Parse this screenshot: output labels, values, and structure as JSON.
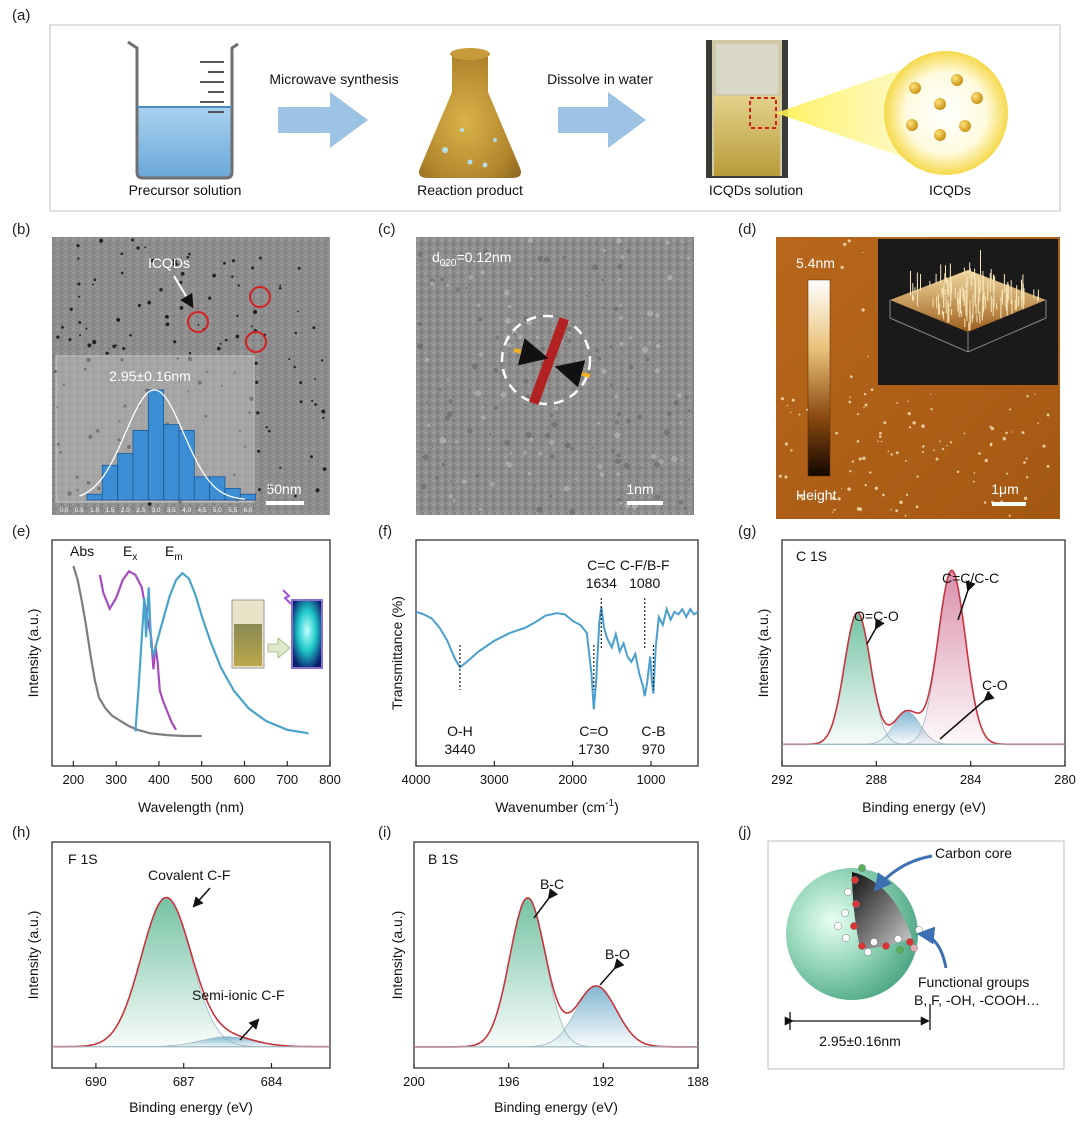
{
  "panel_labels": [
    "(a)",
    "(b)",
    "(c)",
    "(d)",
    "(e)",
    "(f)",
    "(g)",
    "(h)",
    "(i)",
    "(j)"
  ],
  "panel_a": {
    "step1": "Microwave synthesis",
    "step2": "Dissolve in water",
    "captions": [
      "Precursor solution",
      "Reaction product",
      "ICQDs solution",
      "ICQDs"
    ]
  },
  "panel_b": {
    "label": "ICQDs",
    "inset_title": "2.95±0.16nm",
    "scale_bar": "50nm",
    "x_ticks": [
      "0.0",
      "0.5",
      "1.0",
      "1.5",
      "2.0",
      "2.5",
      "3.0",
      "3.5",
      "4.0",
      "4.5",
      "5.0",
      "5.5",
      "6.0"
    ],
    "hist_values": [
      1,
      6,
      8,
      12,
      19,
      13,
      12,
      4,
      4,
      2,
      1
    ],
    "hist_centers": [
      1.0,
      1.5,
      2.0,
      2.5,
      3.0,
      3.5,
      4.0,
      4.5,
      5.0,
      5.5,
      6.0
    ]
  },
  "panel_c": {
    "d_main": "d",
    "d_sub": "020",
    "d_rest": "=0.12nm",
    "scale_bar": "1nm"
  },
  "panel_d": {
    "top_label": "5.4nm",
    "bottom_label": "Height",
    "scale_bar": "1μm"
  },
  "chart_data": [
    {
      "type": "line",
      "panel": "e",
      "xlabel": "Wavelength (nm)",
      "ylabel": "Intensity (a.u.)",
      "xlim": [
        150,
        800
      ],
      "x_ticks": [
        "200",
        "300",
        "400",
        "500",
        "600",
        "700",
        "800"
      ],
      "series": [
        {
          "name": "Abs",
          "color": "#7d7d7d",
          "points": [
            [
              200,
              1.0
            ],
            [
              210,
              0.92
            ],
            [
              220,
              0.8
            ],
            [
              230,
              0.66
            ],
            [
              240,
              0.5
            ],
            [
              250,
              0.36
            ],
            [
              260,
              0.26
            ],
            [
              275,
              0.2
            ],
            [
              290,
              0.16
            ],
            [
              310,
              0.13
            ],
            [
              330,
              0.1
            ],
            [
              350,
              0.08
            ],
            [
              380,
              0.06
            ],
            [
              420,
              0.05
            ],
            [
              460,
              0.045
            ],
            [
              500,
              0.045
            ]
          ]
        },
        {
          "name": "Ex",
          "label_main": "E",
          "label_sub": "x",
          "color": "#a64cbf",
          "points": [
            [
              262,
              0.95
            ],
            [
              270,
              0.85
            ],
            [
              285,
              0.76
            ],
            [
              300,
              0.82
            ],
            [
              315,
              0.92
            ],
            [
              330,
              0.97
            ],
            [
              345,
              0.95
            ],
            [
              360,
              0.88
            ],
            [
              372,
              0.72
            ],
            [
              382,
              0.6
            ],
            [
              387,
              0.42
            ],
            [
              392,
              0.55
            ],
            [
              397,
              0.46
            ],
            [
              402,
              0.3
            ],
            [
              410,
              0.24
            ],
            [
              420,
              0.18
            ],
            [
              430,
              0.12
            ],
            [
              440,
              0.08
            ]
          ]
        },
        {
          "name": "Em",
          "label_main": "E",
          "label_sub": "m",
          "color": "#4aa3cc",
          "points": [
            [
              345,
              0.07
            ],
            [
              352,
              0.3
            ],
            [
              360,
              0.6
            ],
            [
              366,
              0.82
            ],
            [
              370,
              0.6
            ],
            [
              376,
              0.88
            ],
            [
              382,
              0.55
            ],
            [
              388,
              0.5
            ],
            [
              396,
              0.58
            ],
            [
              410,
              0.7
            ],
            [
              425,
              0.83
            ],
            [
              440,
              0.92
            ],
            [
              455,
              0.96
            ],
            [
              470,
              0.93
            ],
            [
              485,
              0.84
            ],
            [
              500,
              0.72
            ],
            [
              520,
              0.58
            ],
            [
              545,
              0.43
            ],
            [
              575,
              0.3
            ],
            [
              610,
              0.2
            ],
            [
              650,
              0.13
            ],
            [
              700,
              0.08
            ],
            [
              750,
              0.06
            ]
          ]
        }
      ]
    },
    {
      "type": "line",
      "panel": "f",
      "xlabel": "Wavenumber (cm",
      "xlabel_sup": "-1",
      "xlabel_end": ")",
      "ylabel": "Transmittance (%)",
      "xlim": [
        4000,
        400
      ],
      "x_ticks": [
        "4000",
        "3000",
        "2000",
        "1000"
      ],
      "annotations": [
        {
          "text": "C=C",
          "value": "1634"
        },
        {
          "text": "C-F/B-F",
          "value": "1080"
        },
        {
          "text": "O-H",
          "value": "3440"
        },
        {
          "text": "C=O",
          "value": "1730"
        },
        {
          "text": "C-B",
          "value": "970"
        }
      ],
      "series": [
        {
          "name": "",
          "color": "#4a9fcf",
          "points": [
            [
              4000,
              0.82
            ],
            [
              3900,
              0.8
            ],
            [
              3800,
              0.77
            ],
            [
              3700,
              0.7
            ],
            [
              3600,
              0.6
            ],
            [
              3500,
              0.46
            ],
            [
              3440,
              0.4
            ],
            [
              3350,
              0.44
            ],
            [
              3200,
              0.52
            ],
            [
              3000,
              0.6
            ],
            [
              2800,
              0.66
            ],
            [
              2600,
              0.7
            ],
            [
              2450,
              0.75
            ],
            [
              2350,
              0.79
            ],
            [
              2200,
              0.81
            ],
            [
              2100,
              0.8
            ],
            [
              2000,
              0.75
            ],
            [
              1900,
              0.72
            ],
            [
              1820,
              0.66
            ],
            [
              1760,
              0.35
            ],
            [
              1730,
              0.08
            ],
            [
              1700,
              0.3
            ],
            [
              1660,
              0.74
            ],
            [
              1634,
              0.86
            ],
            [
              1600,
              0.7
            ],
            [
              1560,
              0.62
            ],
            [
              1500,
              0.55
            ],
            [
              1450,
              0.65
            ],
            [
              1400,
              0.52
            ],
            [
              1350,
              0.58
            ],
            [
              1300,
              0.48
            ],
            [
              1250,
              0.44
            ],
            [
              1200,
              0.5
            ],
            [
              1150,
              0.35
            ],
            [
              1100,
              0.25
            ],
            [
              1080,
              0.18
            ],
            [
              1050,
              0.28
            ],
            [
              1010,
              0.48
            ],
            [
              990,
              0.3
            ],
            [
              970,
              0.2
            ],
            [
              940,
              0.55
            ],
            [
              900,
              0.78
            ],
            [
              850,
              0.72
            ],
            [
              800,
              0.84
            ],
            [
              750,
              0.76
            ],
            [
              700,
              0.82
            ],
            [
              650,
              0.8
            ],
            [
              600,
              0.84
            ],
            [
              550,
              0.78
            ],
            [
              500,
              0.84
            ],
            [
              450,
              0.8
            ],
            [
              400,
              0.82
            ]
          ]
        }
      ]
    },
    {
      "type": "area",
      "panel": "g",
      "title": "C 1S",
      "xlabel": "Binding energy (eV)",
      "ylabel": "Intensity (a.u.)",
      "xlim": [
        292,
        280
      ],
      "x_ticks": [
        "292",
        "288",
        "284",
        "280"
      ],
      "peaks": [
        {
          "name": "O=C-O",
          "center": 288.8,
          "height": 0.72,
          "sigma": 0.55,
          "color": "#6dbf9f"
        },
        {
          "name": "C-O",
          "center": 286.7,
          "height": 0.18,
          "sigma": 0.55,
          "color": "#7bb3cf"
        },
        {
          "name": "C=C/C-C",
          "center": 284.8,
          "height": 0.95,
          "sigma": 0.58,
          "color": "#d88aa8"
        }
      ]
    },
    {
      "type": "area",
      "panel": "h",
      "title": "F 1S",
      "xlabel": "Binding energy (eV)",
      "ylabel": "Intensity (a.u.)",
      "xlim": [
        691.5,
        682
      ],
      "x_ticks": [
        "690",
        "687",
        "684"
      ],
      "peaks": [
        {
          "name": "Covalent C-F",
          "center": 687.6,
          "height": 0.9,
          "sigma": 0.85,
          "color": "#6dbf9f"
        },
        {
          "name": "Semi-ionic C-F",
          "center": 685.5,
          "height": 0.06,
          "sigma": 0.9,
          "color": "#7bb3cf"
        }
      ]
    },
    {
      "type": "area",
      "panel": "i",
      "title": "B 1S",
      "xlabel": "Binding energy (eV)",
      "ylabel": "Intensity (a.u.)",
      "xlim": [
        200,
        188
      ],
      "x_ticks": [
        "200",
        "196",
        "192",
        "188"
      ],
      "peaks": [
        {
          "name": "B-C",
          "center": 195.2,
          "height": 0.93,
          "sigma": 0.75,
          "color": "#6dbf9f"
        },
        {
          "name": "B-O",
          "center": 192.3,
          "height": 0.38,
          "sigma": 0.85,
          "color": "#7bb3cf"
        }
      ]
    }
  ],
  "panel_j": {
    "core_label": "Carbon core",
    "groups_label": "Functional groups",
    "groups_list": "B, F, -OH, -COOH…",
    "size_label": "2.95±0.16nm"
  }
}
